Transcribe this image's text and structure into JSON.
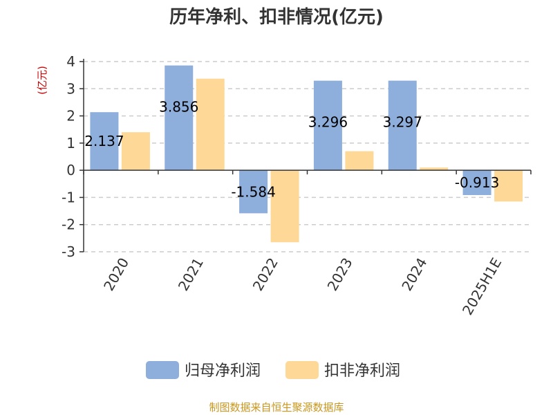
{
  "chart_data": {
    "type": "bar",
    "title": "历年净利、扣非情况(亿元)",
    "unit_label": "(亿元)",
    "categories": [
      "2020",
      "2021",
      "2022",
      "2023",
      "2024",
      "2025H1E"
    ],
    "series": [
      {
        "name": "归母净利润",
        "values": [
          2.137,
          3.856,
          -1.584,
          3.296,
          3.297,
          -0.913
        ],
        "color": "#8eaedb"
      },
      {
        "name": "扣非净利润",
        "values": [
          1.4,
          3.37,
          -2.65,
          0.7,
          0.1,
          -1.15
        ],
        "color": "#fed896"
      }
    ],
    "data_labels": [
      "2.137",
      "3.856",
      "-1.584",
      "3.296",
      "3.297",
      "-0.913"
    ],
    "yticks": [
      "4",
      "3",
      "2",
      "1",
      "0",
      "-1",
      "-2",
      "-3"
    ],
    "ylim": [
      -3,
      4
    ],
    "grid": true,
    "legend_position": "bottom",
    "source": "制图数据来自恒生聚源数据库",
    "colors": {
      "unit": "#cc0000",
      "source": "#c8961e",
      "grid": "#cccccc",
      "axis": "#333333"
    }
  }
}
